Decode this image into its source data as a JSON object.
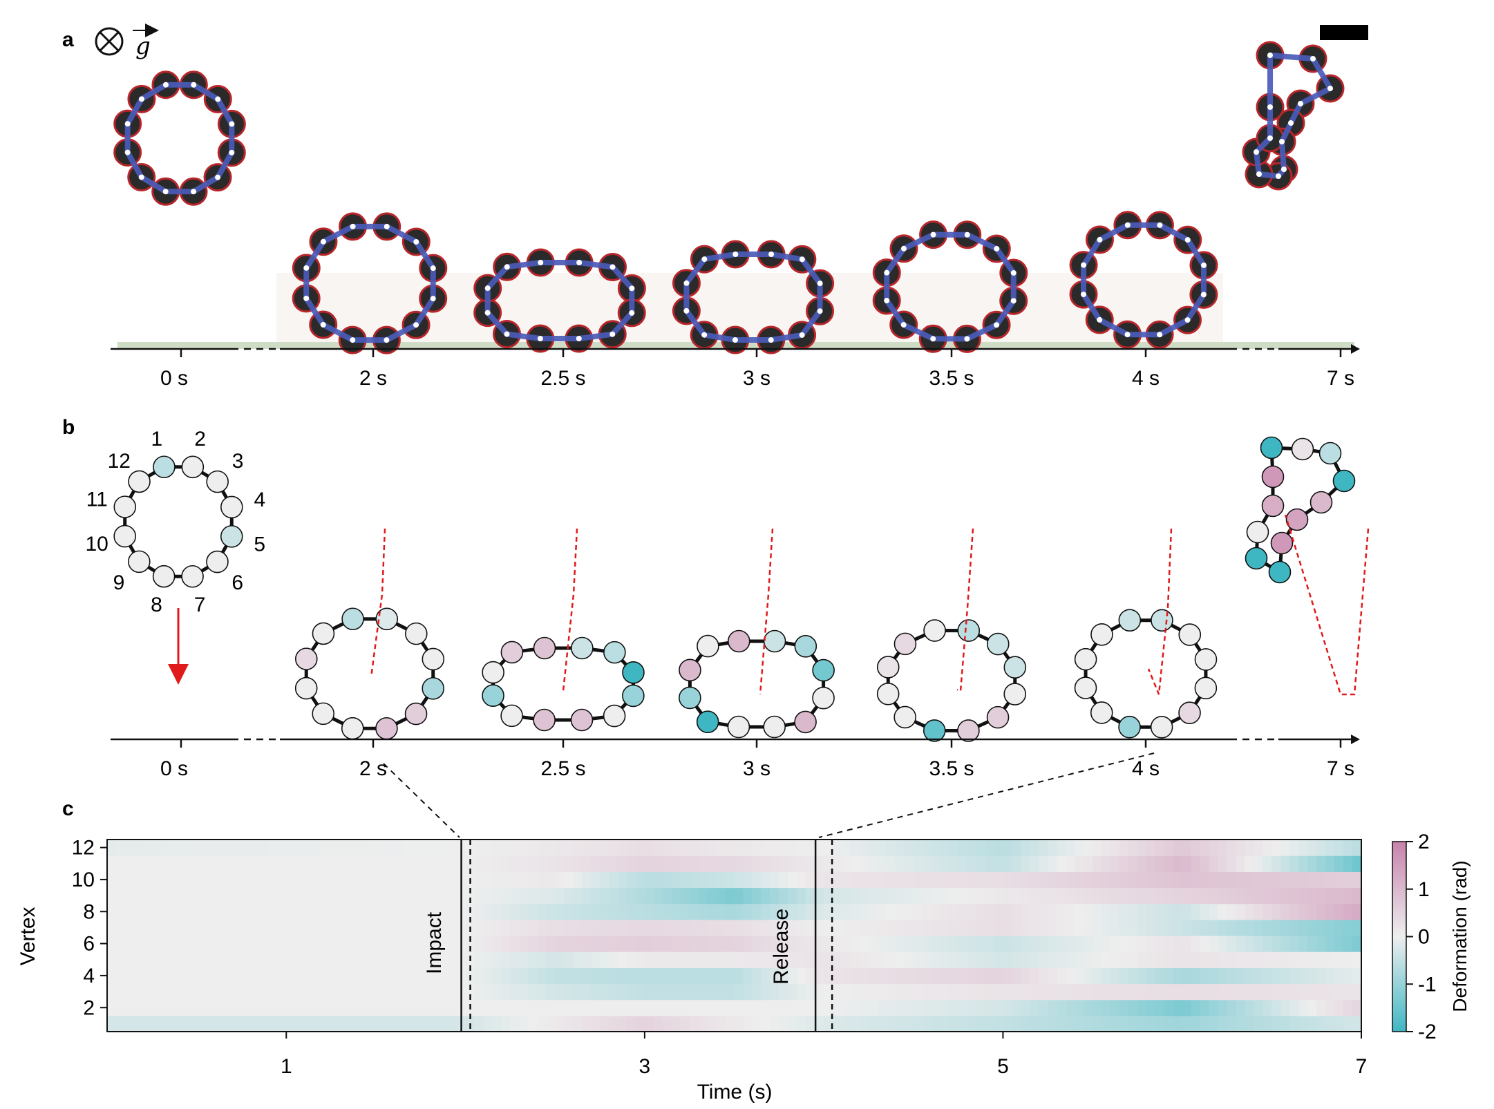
{
  "panels": {
    "a": {
      "letter": "a",
      "gravity_symbol": "g",
      "times": [
        "0 s",
        "2 s",
        "2.5 s",
        "3 s",
        "3.5 s",
        "4 s",
        "7 s"
      ]
    },
    "b": {
      "letter": "b",
      "vertex_labels": [
        "1",
        "2",
        "3",
        "4",
        "5",
        "6",
        "7",
        "8",
        "9",
        "10",
        "11",
        "12"
      ],
      "times": [
        "0 s",
        "2 s",
        "2.5 s",
        "3 s",
        "3.5 s",
        "4 s",
        "7 s"
      ]
    },
    "c": {
      "letter": "c",
      "colorbar": {
        "label": "Deformation (rad)",
        "ticks": [
          "2",
          "1",
          "0",
          "-1",
          "-2"
        ],
        "colors": {
          "positive": "#c783ac",
          "zero": "#eeeeee",
          "negative": "#3fb7c3"
        }
      },
      "annotations": {
        "impact": "Impact",
        "release": "Release"
      }
    }
  },
  "colors": {
    "ring_overlay": "#4a5bb8",
    "trajectory": "#e01a1a",
    "arrow": "#e01a1a"
  },
  "chart_data": {
    "type": "heatmap",
    "xlabel": "Time (s)",
    "ylabel": "Vertex",
    "x_ticks": [
      "1",
      "3",
      "5",
      "7"
    ],
    "y_ticks": [
      "2",
      "4",
      "6",
      "8",
      "10",
      "12"
    ],
    "xlim": [
      0,
      7
    ],
    "ylim": [
      0.5,
      12.5
    ],
    "clim": [
      -2,
      2
    ],
    "events": [
      {
        "name": "Impact",
        "time": 2.0
      },
      {
        "name": "Release",
        "time": 4.0
      }
    ],
    "deformation_rad": [
      {
        "vertex": 1,
        "t": [
          0,
          2,
          2.5,
          3,
          3.5,
          4,
          5,
          6,
          7
        ],
        "v": [
          -0.3,
          -0.3,
          0.1,
          0.5,
          0.1,
          -0.2,
          -0.5,
          -0.9,
          -0.3
        ]
      },
      {
        "vertex": 2,
        "t": [
          0,
          2,
          2.5,
          3,
          3.5,
          4,
          5,
          6,
          7
        ],
        "v": [
          0,
          0,
          0,
          0,
          0,
          0,
          -0.3,
          -1.3,
          0.5
        ]
      },
      {
        "vertex": 3,
        "t": [
          0,
          2,
          2.5,
          3,
          3.5,
          4,
          5,
          6,
          7
        ],
        "v": [
          0,
          0,
          -0.3,
          -0.5,
          -0.5,
          0,
          0.2,
          0.3,
          0.2
        ]
      },
      {
        "vertex": 4,
        "t": [
          0,
          2,
          2.5,
          3,
          3.5,
          4,
          5,
          6,
          7
        ],
        "v": [
          0,
          0,
          -0.5,
          -0.6,
          -0.6,
          0.2,
          0.5,
          -0.8,
          -0.1
        ]
      },
      {
        "vertex": 5,
        "t": [
          0,
          2,
          2.5,
          3,
          3.5,
          4,
          5,
          6,
          7
        ],
        "v": [
          0,
          0,
          -0.3,
          0.1,
          0.1,
          0.2,
          -0.3,
          0.2,
          0
        ]
      },
      {
        "vertex": 6,
        "t": [
          0,
          2,
          2.5,
          3,
          3.5,
          4,
          5,
          6,
          7
        ],
        "v": [
          0,
          0,
          0.5,
          0.6,
          0.5,
          0.1,
          -0.4,
          0.2,
          -1.3
        ]
      },
      {
        "vertex": 7,
        "t": [
          0,
          2,
          2.5,
          3,
          3.5,
          4,
          5,
          6,
          7
        ],
        "v": [
          0,
          0,
          0.3,
          0.4,
          0.3,
          0,
          0.3,
          -0.4,
          -1.2
        ]
      },
      {
        "vertex": 8,
        "t": [
          0,
          2,
          2.5,
          3,
          3.5,
          4,
          5,
          6,
          7
        ],
        "v": [
          0,
          0,
          -0.4,
          -0.6,
          -0.8,
          -0.2,
          0.3,
          -0.4,
          1.3
        ]
      },
      {
        "vertex": 9,
        "t": [
          0,
          2,
          2.5,
          3,
          3.5,
          4,
          5,
          6,
          7
        ],
        "v": [
          0,
          0,
          -0.2,
          -0.7,
          -1.3,
          -0.3,
          0.1,
          0.5,
          1.0
        ]
      },
      {
        "vertex": 10,
        "t": [
          0,
          2,
          2.5,
          3,
          3.5,
          4,
          5,
          6,
          7
        ],
        "v": [
          0,
          0,
          0.1,
          -0.6,
          -0.4,
          0.2,
          0.3,
          0.8,
          0.6
        ]
      },
      {
        "vertex": 11,
        "t": [
          0,
          2,
          2.5,
          3,
          3.5,
          4,
          5,
          6,
          7
        ],
        "v": [
          0,
          0,
          0.2,
          0.5,
          0.4,
          0.1,
          -0.5,
          1.0,
          -1.5
        ]
      },
      {
        "vertex": 12,
        "t": [
          0,
          2,
          2.5,
          3,
          3.5,
          4,
          5,
          6,
          7
        ],
        "v": [
          -0.1,
          0,
          0.1,
          0.3,
          0.1,
          0,
          -0.6,
          0.7,
          -0.6
        ]
      }
    ]
  }
}
